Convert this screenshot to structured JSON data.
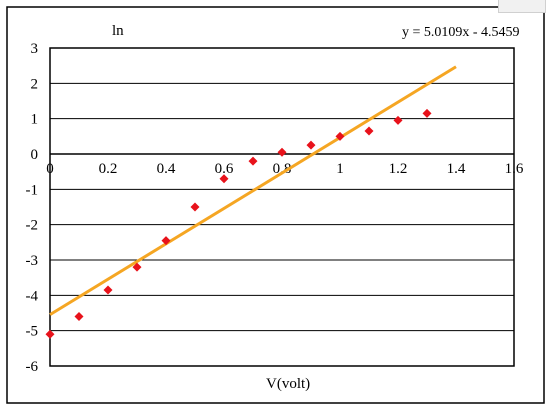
{
  "chart_data": {
    "type": "scatter",
    "title": "",
    "ylabel": "ln",
    "xlabel": "V(volt)",
    "xlim": [
      0,
      1.6
    ],
    "ylim": [
      -6,
      3
    ],
    "x_ticks": [
      "0",
      "0.2",
      "0.4",
      "0.6",
      "0.8",
      "1",
      "1.2",
      "1.4",
      "1.6"
    ],
    "y_ticks": [
      "3",
      "2",
      "1",
      "0",
      "-1",
      "-2",
      "-3",
      "-4",
      "-5",
      "-6"
    ],
    "grid": "horizontal",
    "points": [
      {
        "x": 0.0,
        "y": -5.1
      },
      {
        "x": 0.1,
        "y": -4.6
      },
      {
        "x": 0.2,
        "y": -3.85
      },
      {
        "x": 0.3,
        "y": -3.2
      },
      {
        "x": 0.4,
        "y": -2.45
      },
      {
        "x": 0.5,
        "y": -1.5
      },
      {
        "x": 0.6,
        "y": -0.7
      },
      {
        "x": 0.7,
        "y": -0.2
      },
      {
        "x": 0.8,
        "y": 0.05
      },
      {
        "x": 0.9,
        "y": 0.25
      },
      {
        "x": 1.0,
        "y": 0.5
      },
      {
        "x": 1.1,
        "y": 0.65
      },
      {
        "x": 1.2,
        "y": 0.95
      },
      {
        "x": 1.3,
        "y": 1.15
      }
    ],
    "trendline": {
      "slope": 5.0109,
      "intercept": -4.5459,
      "x_range": [
        0,
        1.4
      ],
      "equation": "y = 5.0109x - 4.5459"
    },
    "colors": {
      "points": "#e8121b",
      "trendline": "#f5a623",
      "grid": "#000000"
    }
  }
}
